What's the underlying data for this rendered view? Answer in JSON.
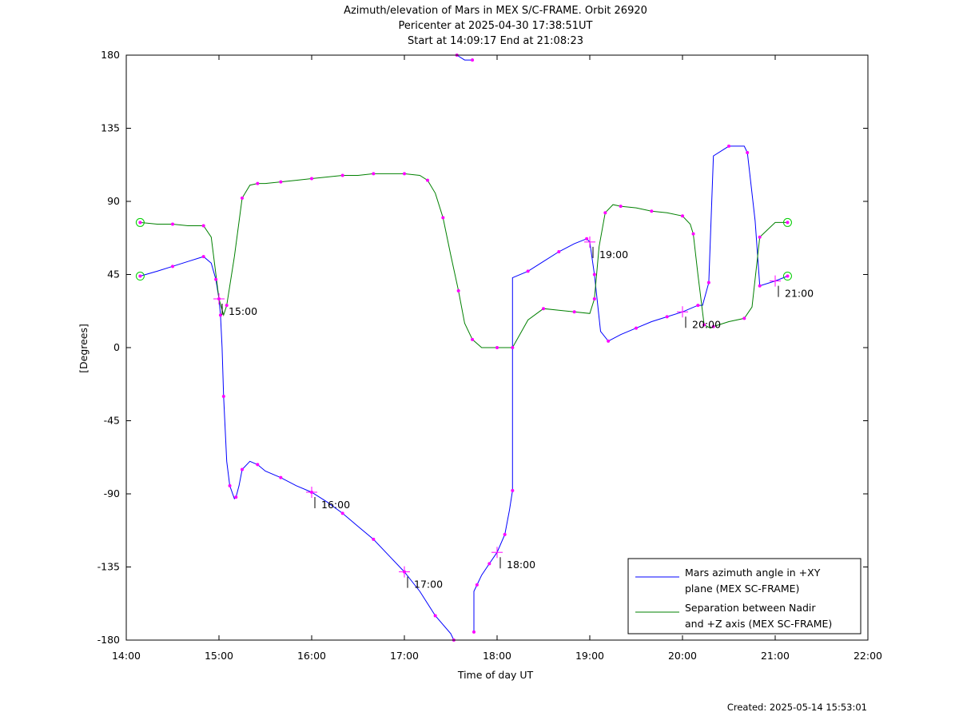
{
  "chart_data": {
    "type": "line",
    "title_lines": [
      "Azimuth/elevation of Mars in MEX S/C-FRAME.  Orbit 26920",
      "Pericenter at 2025-04-30 17:38:51UT",
      "Start at 14:09:17 End at 21:08:23"
    ],
    "xlabel": "Time of day UT",
    "ylabel": "[Degrees]",
    "xlim": [
      "14:00",
      "22:00"
    ],
    "ylim": [
      -180,
      180
    ],
    "x_ticks": [
      "14:00",
      "15:00",
      "16:00",
      "17:00",
      "18:00",
      "19:00",
      "20:00",
      "21:00",
      "22:00"
    ],
    "y_ticks": [
      180,
      135,
      90,
      45,
      0,
      -45,
      -90,
      -135,
      -180
    ],
    "grid": false,
    "legend_position": "bottom-right",
    "series": [
      {
        "name": "Mars azimuth angle in +XY plane (MEX SC-FRAME)",
        "legend_lines": [
          "Mars azimuth angle in +XY",
          "plane (MEX SC-FRAME)"
        ],
        "color": "#0000ff",
        "x": [
          "14:09",
          "14:20",
          "14:30",
          "14:40",
          "14:50",
          "14:55",
          "14:58",
          "15:00",
          "15:01",
          "15:02",
          "15:03",
          "15:05",
          "15:07",
          "15:10",
          "15:11",
          "15:13",
          "15:15",
          "15:20",
          "15:25",
          "15:30",
          "15:40",
          "15:50",
          "16:00",
          "16:10",
          "16:20",
          "16:30",
          "16:40",
          "16:50",
          "17:00",
          "17:10",
          "17:20",
          "17:30",
          "17:32",
          "17:33",
          "17:34",
          "17:39",
          "17:44",
          "17:44",
          "17:45",
          "17:45",
          "17:47",
          "17:50",
          "17:55",
          "18:00",
          "18:05",
          "18:08",
          "18:10",
          "18:10",
          "18:20",
          "18:30",
          "18:40",
          "18:50",
          "18:58",
          "19:00",
          "19:03",
          "19:07",
          "19:12",
          "19:20",
          "19:30",
          "19:40",
          "19:50",
          "20:00",
          "20:10",
          "20:13",
          "20:17",
          "20:20",
          "20:30",
          "20:40",
          "20:42",
          "20:47",
          "20:50",
          "21:00",
          "21:08"
        ],
        "y": [
          44,
          47,
          50,
          53,
          56,
          52,
          42,
          30,
          20,
          0,
          -30,
          -70,
          -85,
          -93,
          -92,
          -85,
          -75,
          -70,
          -72,
          -76,
          -80,
          -85,
          -89,
          -95,
          -102,
          -110,
          -118,
          -128,
          -138,
          -150,
          -165,
          -176,
          -180,
          -180,
          180,
          177,
          177,
          178,
          -175,
          -150,
          -146,
          -140,
          -133,
          -126,
          -115,
          -100,
          -88,
          43,
          47,
          53,
          59,
          64,
          67,
          65,
          45,
          10,
          4,
          8,
          12,
          16,
          19,
          22,
          26,
          26,
          40,
          118,
          124,
          124,
          120,
          78,
          38,
          41,
          44
        ]
      },
      {
        "name": "Separation between Nadir and +Z axis (MEX SC-FRAME)",
        "legend_lines": [
          "Separation between Nadir",
          "and +Z axis (MEX SC-FRAME)"
        ],
        "color": "#008000",
        "x": [
          "14:09",
          "14:20",
          "14:30",
          "14:40",
          "14:50",
          "14:55",
          "15:00",
          "15:03",
          "15:05",
          "15:10",
          "15:15",
          "15:20",
          "15:25",
          "15:30",
          "15:40",
          "15:50",
          "16:00",
          "16:10",
          "16:20",
          "16:30",
          "16:40",
          "16:50",
          "17:00",
          "17:10",
          "17:15",
          "17:20",
          "17:25",
          "17:30",
          "17:35",
          "17:39",
          "17:44",
          "17:50",
          "18:00",
          "18:05",
          "18:10",
          "18:20",
          "18:30",
          "18:40",
          "18:50",
          "19:00",
          "19:03",
          "19:06",
          "19:10",
          "19:15",
          "19:20",
          "19:30",
          "19:40",
          "19:50",
          "20:00",
          "20:05",
          "20:07",
          "20:10",
          "20:14",
          "20:18",
          "20:20",
          "20:30",
          "20:40",
          "20:45",
          "20:50",
          "21:00",
          "21:08"
        ],
        "y": [
          77,
          76,
          76,
          75,
          75,
          68,
          30,
          20,
          26,
          56,
          92,
          100,
          101,
          101,
          102,
          103,
          104,
          105,
          106,
          106,
          107,
          107,
          107,
          106,
          103,
          95,
          80,
          57,
          35,
          15,
          5,
          0,
          0,
          0,
          0,
          17,
          24,
          23,
          22,
          21,
          30,
          62,
          83,
          88,
          87,
          86,
          84,
          83,
          81,
          76,
          70,
          45,
          14,
          12,
          13,
          16,
          18,
          25,
          68,
          77,
          77
        ]
      }
    ],
    "time_labels": [
      "15:00",
      "16:00",
      "17:00",
      "18:00",
      "19:00",
      "20:00",
      "21:00"
    ],
    "footer": "Created: 2025-05-14 15:53:01"
  }
}
